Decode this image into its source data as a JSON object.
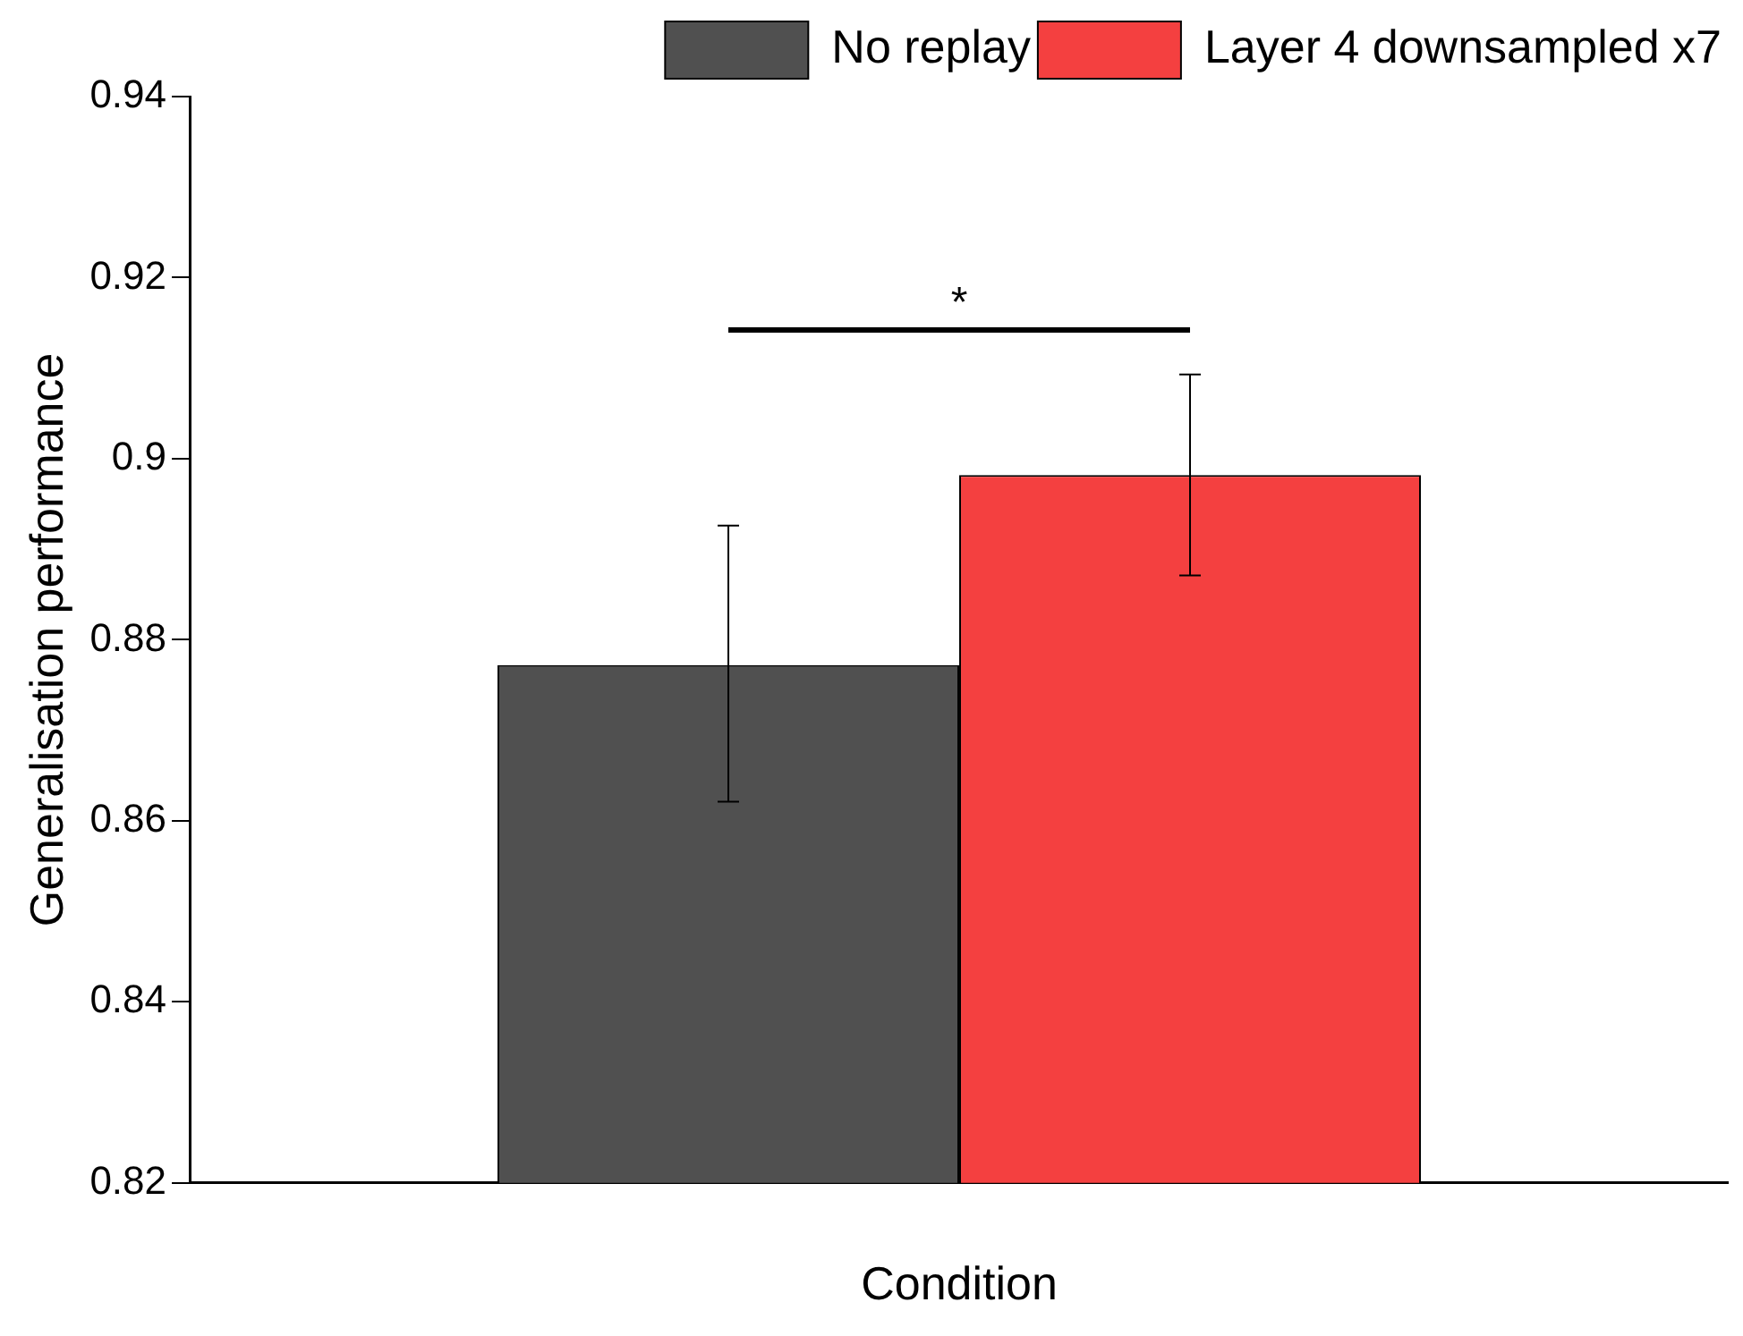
{
  "chart_data": {
    "type": "bar",
    "xlabel": "Condition",
    "ylabel": "Generalisation performance",
    "categories": [
      null
    ],
    "series": [
      {
        "name": "No replay",
        "color": "#505050",
        "values": [
          0.8772
        ],
        "errors": [
          [
            0.8621,
            0.8926
          ]
        ]
      },
      {
        "name": "Layer 4 downsampled x7",
        "color": "#f44040",
        "values": [
          0.8982
        ],
        "errors": [
          [
            0.8871,
            0.9093
          ]
        ]
      }
    ],
    "ylim": [
      0.82,
      0.94
    ],
    "yticks": [
      0.82,
      0.84,
      0.86,
      0.88,
      0.9,
      0.92,
      0.94
    ],
    "grid": false,
    "legend": "top right",
    "annotations": [
      "*"
    ]
  }
}
